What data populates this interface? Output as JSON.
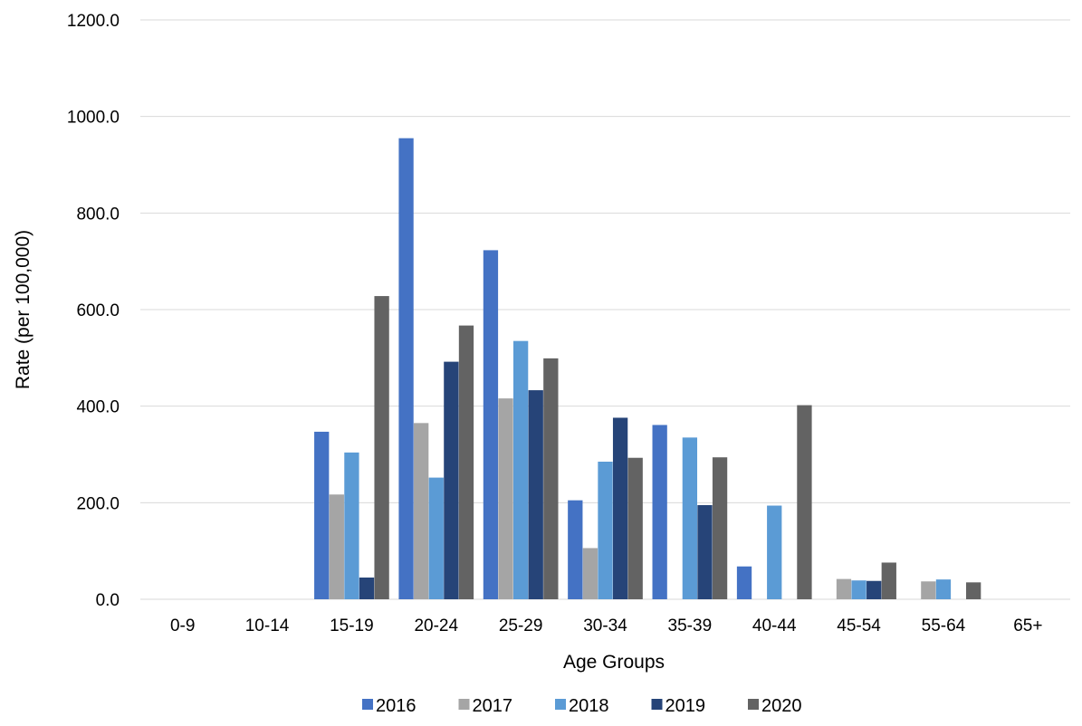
{
  "chart_data": {
    "type": "bar",
    "title": "",
    "xlabel": "Age Groups",
    "ylabel": "Rate (per 100,000)",
    "ylim": [
      0,
      1200
    ],
    "y_ticks": [
      "0.0",
      "200.0",
      "400.0",
      "600.0",
      "800.0",
      "1000.0",
      "1200.0"
    ],
    "grid": "horizontal",
    "legend_position": "bottom",
    "categories": [
      "0-9",
      "10-14",
      "15-19",
      "20-24",
      "25-29",
      "30-34",
      "35-39",
      "40-44",
      "45-54",
      "55-64",
      "65+"
    ],
    "series": [
      {
        "name": "2016",
        "color": "#4472c4",
        "values": [
          0,
          0,
          347,
          955,
          723,
          205,
          361,
          68,
          0,
          0,
          0
        ]
      },
      {
        "name": "2017",
        "color": "#a5a5a5",
        "values": [
          0,
          0,
          217,
          365,
          416,
          106,
          0,
          0,
          42,
          37,
          0
        ]
      },
      {
        "name": "2018",
        "color": "#5b9bd5",
        "values": [
          0,
          0,
          304,
          252,
          535,
          285,
          335,
          194,
          39,
          41,
          0
        ]
      },
      {
        "name": "2019",
        "color": "#264478",
        "values": [
          0,
          0,
          45,
          492,
          433,
          376,
          195,
          0,
          38,
          0,
          0
        ]
      },
      {
        "name": "2020",
        "color": "#636363",
        "values": [
          0,
          0,
          628,
          567,
          499,
          293,
          294,
          402,
          76,
          35,
          0
        ]
      }
    ]
  }
}
